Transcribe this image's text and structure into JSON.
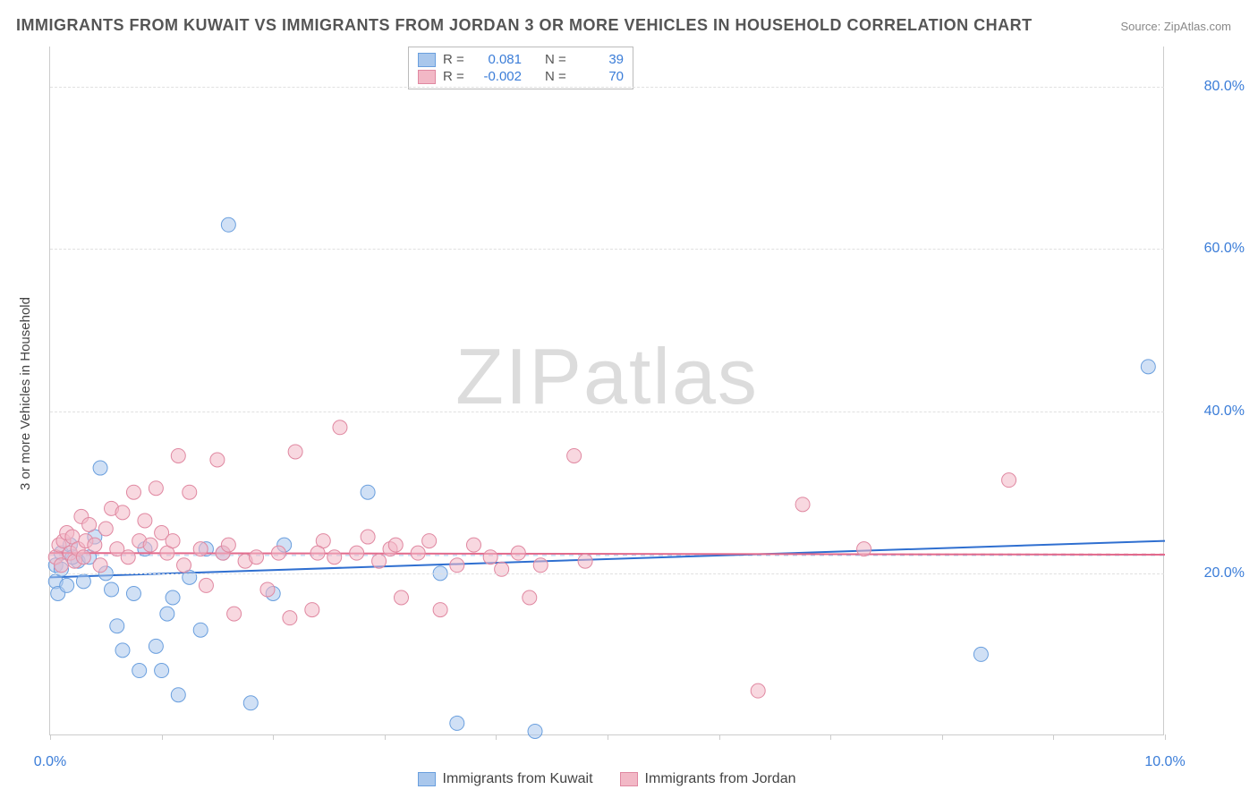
{
  "title": "IMMIGRANTS FROM KUWAIT VS IMMIGRANTS FROM JORDAN 3 OR MORE VEHICLES IN HOUSEHOLD CORRELATION CHART",
  "source": "Source: ZipAtlas.com",
  "yaxis_label": "3 or more Vehicles in Household",
  "watermark": "ZIPatlas",
  "chart": {
    "type": "scatter",
    "background_color": "#ffffff",
    "grid_color": "#e0e0e0",
    "axis_color": "#cccccc",
    "tick_label_color": "#3b7dd8",
    "tick_fontsize": 16,
    "title_color": "#555555",
    "title_fontsize": 18,
    "xlim": [
      0,
      10
    ],
    "ylim": [
      0,
      85
    ],
    "xticks": [
      0,
      1,
      2,
      3,
      4,
      5,
      6,
      7,
      8,
      9,
      10
    ],
    "xtick_labels_shown": {
      "0": "0.0%",
      "10": "10.0%"
    },
    "yticks": [
      20,
      40,
      60,
      80
    ],
    "ytick_labels": [
      "20.0%",
      "40.0%",
      "60.0%",
      "80.0%"
    ],
    "marker_radius": 8,
    "marker_opacity": 0.55,
    "line_width": 2,
    "series": [
      {
        "name": "Immigrants from Kuwait",
        "color_fill": "#a9c7ec",
        "color_stroke": "#6a9fde",
        "R": "0.081",
        "N": "39",
        "trend_line": {
          "y_at_x0": 19.5,
          "y_at_x10": 24.0,
          "color": "#2f6fd0"
        },
        "mean_line_y": 22.2,
        "points": [
          [
            0.05,
            19.0
          ],
          [
            0.05,
            21.0
          ],
          [
            0.07,
            17.5
          ],
          [
            0.1,
            20.5
          ],
          [
            0.1,
            22.5
          ],
          [
            0.15,
            18.5
          ],
          [
            0.18,
            23.5
          ],
          [
            0.25,
            21.5
          ],
          [
            0.3,
            19.0
          ],
          [
            0.35,
            22.0
          ],
          [
            0.4,
            24.5
          ],
          [
            0.45,
            33.0
          ],
          [
            0.5,
            20.0
          ],
          [
            0.55,
            18.0
          ],
          [
            0.6,
            13.5
          ],
          [
            0.65,
            10.5
          ],
          [
            0.75,
            17.5
          ],
          [
            0.8,
            8.0
          ],
          [
            0.85,
            23.0
          ],
          [
            0.95,
            11.0
          ],
          [
            1.0,
            8.0
          ],
          [
            1.05,
            15.0
          ],
          [
            1.1,
            17.0
          ],
          [
            1.15,
            5.0
          ],
          [
            1.25,
            19.5
          ],
          [
            1.35,
            13.0
          ],
          [
            1.4,
            23.0
          ],
          [
            1.55,
            22.5
          ],
          [
            1.6,
            63.0
          ],
          [
            1.8,
            4.0
          ],
          [
            2.0,
            17.5
          ],
          [
            2.1,
            23.5
          ],
          [
            2.85,
            30.0
          ],
          [
            3.5,
            20.0
          ],
          [
            3.65,
            1.5
          ],
          [
            4.35,
            0.5
          ],
          [
            8.35,
            10.0
          ],
          [
            9.85,
            45.5
          ],
          [
            0.2,
            22.0
          ]
        ]
      },
      {
        "name": "Immigrants from Jordan",
        "color_fill": "#f2b8c6",
        "color_stroke": "#e088a1",
        "R": "-0.002",
        "N": "70",
        "trend_line": {
          "y_at_x0": 22.5,
          "y_at_x10": 22.3,
          "color": "#e26a8c"
        },
        "mean_line_y": 22.4,
        "points": [
          [
            0.05,
            22.0
          ],
          [
            0.08,
            23.5
          ],
          [
            0.1,
            21.0
          ],
          [
            0.12,
            24.0
          ],
          [
            0.15,
            25.0
          ],
          [
            0.18,
            22.5
          ],
          [
            0.2,
            24.5
          ],
          [
            0.22,
            21.5
          ],
          [
            0.25,
            23.0
          ],
          [
            0.28,
            27.0
          ],
          [
            0.3,
            22.0
          ],
          [
            0.32,
            24.0
          ],
          [
            0.35,
            26.0
          ],
          [
            0.4,
            23.5
          ],
          [
            0.45,
            21.0
          ],
          [
            0.5,
            25.5
          ],
          [
            0.55,
            28.0
          ],
          [
            0.6,
            23.0
          ],
          [
            0.65,
            27.5
          ],
          [
            0.7,
            22.0
          ],
          [
            0.75,
            30.0
          ],
          [
            0.8,
            24.0
          ],
          [
            0.85,
            26.5
          ],
          [
            0.9,
            23.5
          ],
          [
            0.95,
            30.5
          ],
          [
            1.0,
            25.0
          ],
          [
            1.05,
            22.5
          ],
          [
            1.1,
            24.0
          ],
          [
            1.15,
            34.5
          ],
          [
            1.2,
            21.0
          ],
          [
            1.25,
            30.0
          ],
          [
            1.35,
            23.0
          ],
          [
            1.4,
            18.5
          ],
          [
            1.5,
            34.0
          ],
          [
            1.55,
            22.5
          ],
          [
            1.6,
            23.5
          ],
          [
            1.65,
            15.0
          ],
          [
            1.75,
            21.5
          ],
          [
            1.85,
            22.0
          ],
          [
            1.95,
            18.0
          ],
          [
            2.05,
            22.5
          ],
          [
            2.15,
            14.5
          ],
          [
            2.2,
            35.0
          ],
          [
            2.35,
            15.5
          ],
          [
            2.45,
            24.0
          ],
          [
            2.55,
            22.0
          ],
          [
            2.6,
            38.0
          ],
          [
            2.75,
            22.5
          ],
          [
            2.85,
            24.5
          ],
          [
            2.95,
            21.5
          ],
          [
            3.05,
            23.0
          ],
          [
            3.15,
            17.0
          ],
          [
            3.3,
            22.5
          ],
          [
            3.4,
            24.0
          ],
          [
            3.5,
            15.5
          ],
          [
            3.65,
            21.0
          ],
          [
            3.8,
            23.5
          ],
          [
            3.95,
            22.0
          ],
          [
            4.05,
            20.5
          ],
          [
            4.2,
            22.5
          ],
          [
            4.3,
            17.0
          ],
          [
            4.4,
            21.0
          ],
          [
            4.7,
            34.5
          ],
          [
            4.8,
            21.5
          ],
          [
            6.35,
            5.5
          ],
          [
            6.75,
            28.5
          ],
          [
            7.3,
            23.0
          ],
          [
            8.6,
            31.5
          ],
          [
            3.1,
            23.5
          ],
          [
            2.4,
            22.5
          ]
        ]
      }
    ]
  },
  "stats_box_labels": {
    "r": "R =",
    "n": "N ="
  },
  "legend_labels": [
    "Immigrants from Kuwait",
    "Immigrants from Jordan"
  ]
}
